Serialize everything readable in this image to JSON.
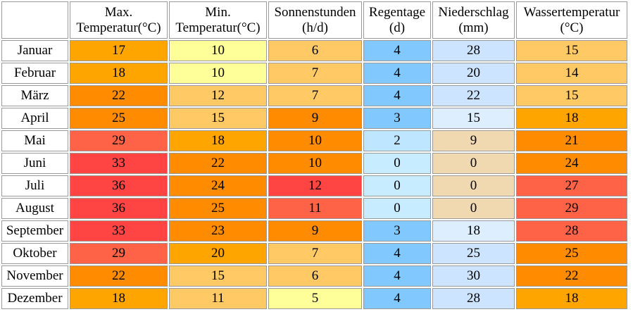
{
  "headers": {
    "max_temp": [
      "Max.",
      "Temperatur(°C)"
    ],
    "min_temp": [
      "Min.",
      "Temperatur(°C)"
    ],
    "sun": [
      "Sonnenstunden",
      "(h/d)"
    ],
    "rain_days": [
      "Regentage",
      "(d)"
    ],
    "precip": [
      "Niederschlag",
      "(mm)"
    ],
    "water_temp": [
      "Wassertemperatur",
      "(°C)"
    ]
  },
  "rows": [
    {
      "month": "Januar",
      "max": "17",
      "min": "10",
      "sun": "6",
      "rain": "4",
      "precip": "28",
      "water": "15",
      "colors": {
        "max": "#ffa500",
        "min": "#ffff99",
        "sun": "#ffc966",
        "rain": "#80c8ff",
        "precip": "#cce4ff",
        "water": "#ffc966"
      }
    },
    {
      "month": "Februar",
      "max": "18",
      "min": "10",
      "sun": "7",
      "rain": "4",
      "precip": "20",
      "water": "14",
      "colors": {
        "max": "#ffa500",
        "min": "#ffff99",
        "sun": "#ffc966",
        "rain": "#80c8ff",
        "precip": "#cce4ff",
        "water": "#ffc966"
      }
    },
    {
      "month": "März",
      "max": "22",
      "min": "12",
      "sun": "7",
      "rain": "4",
      "precip": "22",
      "water": "15",
      "colors": {
        "max": "#ff8c00",
        "min": "#ffc966",
        "sun": "#ffc966",
        "rain": "#80c8ff",
        "precip": "#cce4ff",
        "water": "#ffc966"
      }
    },
    {
      "month": "April",
      "max": "25",
      "min": "15",
      "sun": "9",
      "rain": "3",
      "precip": "15",
      "water": "18",
      "colors": {
        "max": "#ff8c00",
        "min": "#ffc966",
        "sun": "#ff8c00",
        "rain": "#80c8ff",
        "precip": "#ddeeff",
        "water": "#ffa500"
      }
    },
    {
      "month": "Mai",
      "max": "29",
      "min": "18",
      "sun": "10",
      "rain": "2",
      "precip": "9",
      "water": "21",
      "colors": {
        "max": "#ff6347",
        "min": "#ffa500",
        "sun": "#ff8c00",
        "rain": "#bfe6ff",
        "precip": "#f0d8b0",
        "water": "#ff8c00"
      }
    },
    {
      "month": "Juni",
      "max": "33",
      "min": "22",
      "sun": "10",
      "rain": "0",
      "precip": "0",
      "water": "24",
      "colors": {
        "max": "#ff4444",
        "min": "#ff8c00",
        "sun": "#ff8c00",
        "rain": "#c8ecff",
        "precip": "#f0d8b0",
        "water": "#ff8c00"
      }
    },
    {
      "month": "Juli",
      "max": "36",
      "min": "24",
      "sun": "12",
      "rain": "0",
      "precip": "0",
      "water": "27",
      "colors": {
        "max": "#ff4444",
        "min": "#ff8c00",
        "sun": "#ff4444",
        "rain": "#c8ecff",
        "precip": "#f0d8b0",
        "water": "#ff6347"
      }
    },
    {
      "month": "August",
      "max": "36",
      "min": "25",
      "sun": "11",
      "rain": "0",
      "precip": "0",
      "water": "29",
      "colors": {
        "max": "#ff4444",
        "min": "#ff8c00",
        "sun": "#ff6347",
        "rain": "#c8ecff",
        "precip": "#f0d8b0",
        "water": "#ff6347"
      }
    },
    {
      "month": "September",
      "max": "33",
      "min": "23",
      "sun": "9",
      "rain": "3",
      "precip": "18",
      "water": "28",
      "colors": {
        "max": "#ff4444",
        "min": "#ff8c00",
        "sun": "#ff8c00",
        "rain": "#80c8ff",
        "precip": "#ddeeff",
        "water": "#ff6347"
      }
    },
    {
      "month": "Oktober",
      "max": "29",
      "min": "20",
      "sun": "7",
      "rain": "4",
      "precip": "25",
      "water": "25",
      "colors": {
        "max": "#ff6347",
        "min": "#ffa500",
        "sun": "#ffc966",
        "rain": "#80c8ff",
        "precip": "#cce4ff",
        "water": "#ff8c00"
      }
    },
    {
      "month": "November",
      "max": "22",
      "min": "15",
      "sun": "6",
      "rain": "4",
      "precip": "30",
      "water": "22",
      "colors": {
        "max": "#ff8c00",
        "min": "#ffc966",
        "sun": "#ffc966",
        "rain": "#80c8ff",
        "precip": "#cce4ff",
        "water": "#ff8c00"
      }
    },
    {
      "month": "Dezember",
      "max": "18",
      "min": "11",
      "sun": "5",
      "rain": "4",
      "precip": "28",
      "water": "18",
      "colors": {
        "max": "#ffa500",
        "min": "#ffc966",
        "sun": "#ffff99",
        "rain": "#80c8ff",
        "precip": "#cce4ff",
        "water": "#ffa500"
      }
    }
  ]
}
